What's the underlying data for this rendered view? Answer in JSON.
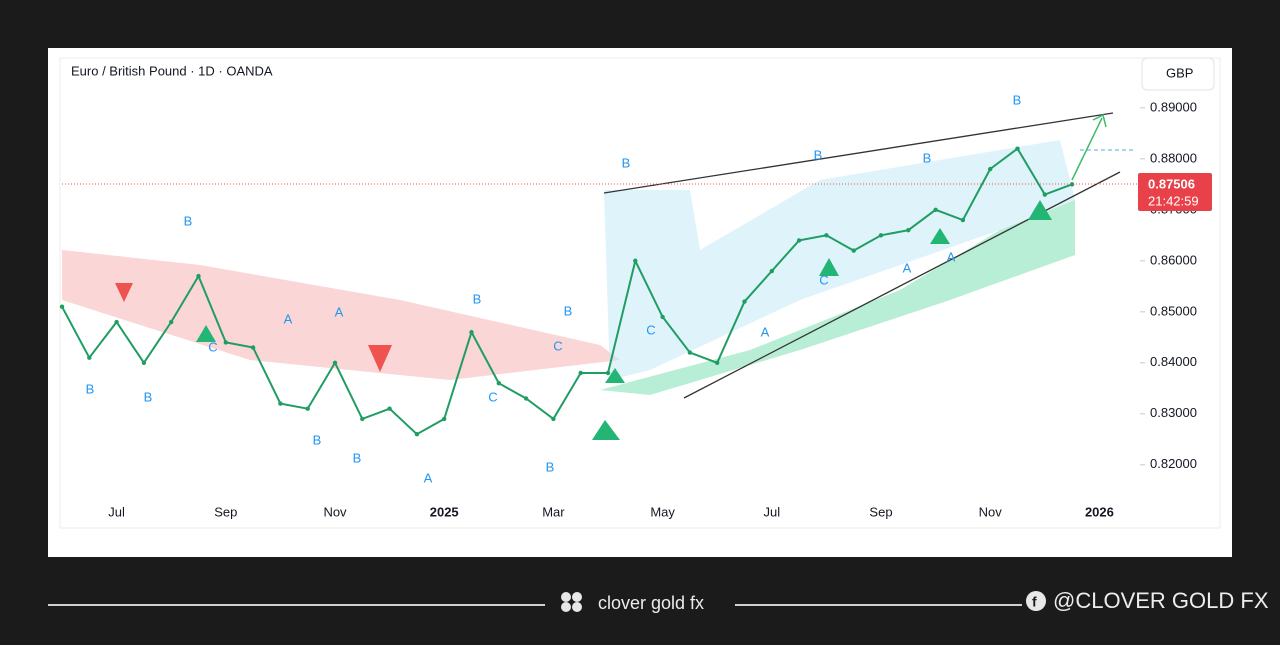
{
  "header": {
    "title": "Euro / British Pound · 1D · OANDA",
    "currency": "GBP"
  },
  "chart_data": {
    "type": "line",
    "categories": [
      null,
      null,
      "Jul",
      null,
      null,
      null,
      "Sep",
      null,
      null,
      null,
      "Nov",
      null,
      null,
      null,
      "2025",
      null,
      null,
      null,
      "Mar",
      null,
      null,
      null,
      "May",
      null,
      null,
      null,
      "Jul",
      null,
      null,
      null,
      "Sep",
      null,
      null,
      null,
      "Nov",
      null,
      null,
      null,
      "2026"
    ],
    "series": [
      {
        "name": "EURGBP",
        "color": "#1f9d62",
        "values": [
          0.851,
          0.841,
          0.848,
          0.84,
          0.848,
          0.857,
          0.844,
          0.843,
          0.832,
          0.831,
          0.84,
          0.829,
          0.831,
          0.826,
          0.829,
          0.846,
          0.836,
          0.833,
          0.829,
          0.838,
          0.838,
          0.86,
          0.849,
          0.842,
          0.84,
          0.852,
          0.858,
          0.864,
          0.865,
          0.862,
          0.865,
          0.866,
          0.87,
          0.868,
          0.878,
          0.882,
          0.873,
          0.875,
          null
        ]
      }
    ],
    "ylim": [
      0.8078,
      0.8935
    ],
    "yticks": [
      {
        "value": 0.82,
        "label": "0.82000"
      },
      {
        "value": 0.83,
        "label": "0.83000"
      },
      {
        "value": 0.84,
        "label": "0.84000"
      },
      {
        "value": 0.85,
        "label": "0.85000"
      },
      {
        "value": 0.86,
        "label": "0.86000"
      },
      {
        "value": 0.87,
        "label": "0.87000"
      },
      {
        "value": 0.88,
        "label": "0.88000"
      },
      {
        "value": 0.89,
        "label": "0.89000"
      }
    ],
    "last_price": 0.87506,
    "countdown": "21:42:59",
    "annotations": [
      "B",
      "B",
      "B",
      "C",
      "A",
      "A",
      "B",
      "B",
      "A",
      "B",
      "C",
      "B",
      "C",
      "B",
      "B",
      "C",
      "C",
      "B",
      "B",
      "A",
      "A",
      "B",
      "A"
    ]
  },
  "footer": {
    "brand": "clover gold fx",
    "handle": "@CLOVER GOLD FX"
  }
}
